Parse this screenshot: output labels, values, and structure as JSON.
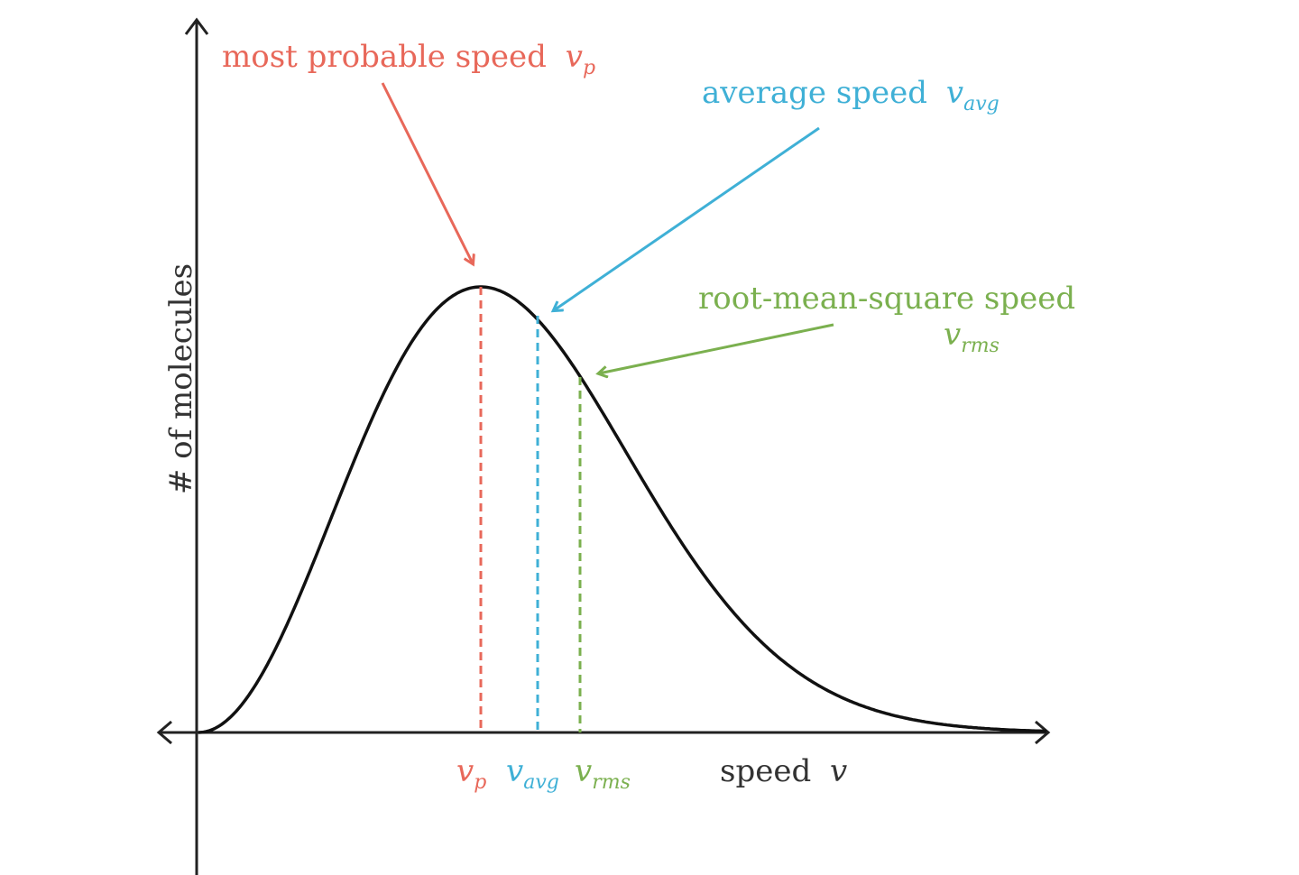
{
  "colors": {
    "axis": "#222222",
    "curve": "#111111",
    "most_probable": "#e8685a",
    "average": "#3fb0d6",
    "rms": "#7bb04f",
    "speed_label": "#333333"
  },
  "axes": {
    "y_label": "# of molecules",
    "x_label_word": "speed",
    "x_label_symbol": "v"
  },
  "annotations": {
    "most_probable": {
      "text": "most probable speed",
      "symbol": "v",
      "subscript": "p"
    },
    "average": {
      "text": "average speed",
      "symbol": "v",
      "subscript": "avg"
    },
    "rms": {
      "text": "root-mean-square speed",
      "symbol": "v",
      "subscript": "rms"
    }
  },
  "tick_labels": {
    "vp": {
      "symbol": "v",
      "subscript": "p"
    },
    "vavg": {
      "symbol": "v",
      "subscript": "avg"
    },
    "vrms": {
      "symbol": "v",
      "subscript": "rms"
    }
  }
}
